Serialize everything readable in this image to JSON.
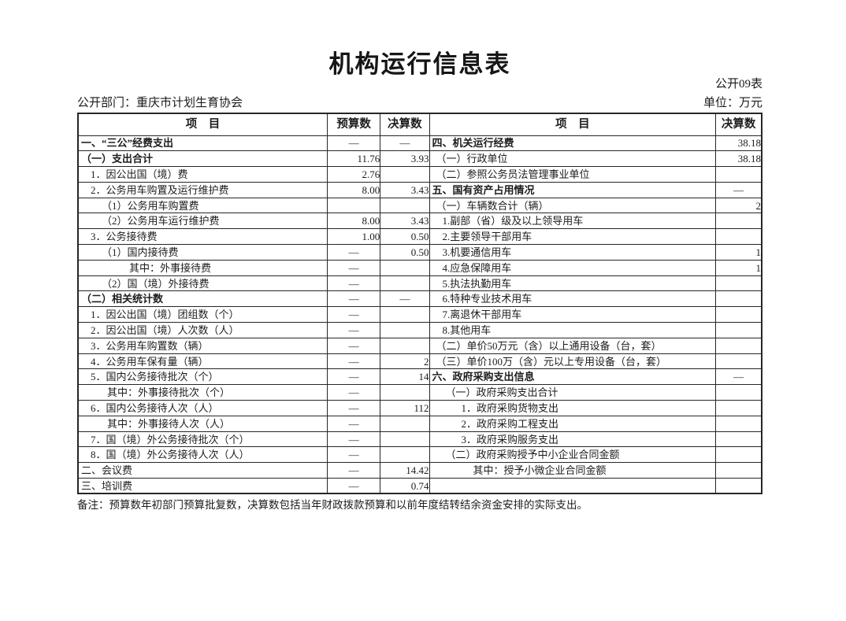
{
  "page": {
    "title": "机构运行信息表",
    "table_code": "公开09表",
    "department": "公开部门：重庆市计划生育协会",
    "unit": "单位：万元",
    "note": "备注：预算数年初部门预算批复数，决算数包括当年财政拨款预算和以前年度结转结余资金安排的实际支出。"
  },
  "table": {
    "headers": {
      "item_left": "项　目",
      "budget": "预算数",
      "final_left": "决算数",
      "item_right": "项　目",
      "final_right": "决算数"
    },
    "rows": [
      {
        "iL": "一、“三公”经费支出",
        "dL": 3,
        "bL": true,
        "v1": "—",
        "v2": "—",
        "iR": "四、机关运行经费",
        "dR": 3,
        "bR": true,
        "v3": "38.18"
      },
      {
        "iL": "（一）支出合计",
        "dL": 3,
        "bL": true,
        "v1": "11.76",
        "v2": "3.93",
        "iR": "（一）行政单位",
        "dR": 8,
        "bR": false,
        "v3": "38.18"
      },
      {
        "iL": "1．因公出国（境）费",
        "dL": 15,
        "bL": false,
        "v1": "2.76",
        "v2": "",
        "iR": "（二）参照公务员法管理事业单位",
        "dR": 8,
        "bR": false,
        "v3": ""
      },
      {
        "iL": "2．公务用车购置及运行维护费",
        "dL": 15,
        "bL": false,
        "v1": "8.00",
        "v2": "3.43",
        "iR": "五、国有资产占用情况",
        "dR": 3,
        "bR": true,
        "v3": "—"
      },
      {
        "iL": "（1）公务用车购置费",
        "dL": 29,
        "bL": false,
        "v1": "",
        "v2": "",
        "iR": "（一）车辆数合计（辆）",
        "dR": 8,
        "bR": false,
        "v3": "2"
      },
      {
        "iL": "（2）公务用车运行维护费",
        "dL": 29,
        "bL": false,
        "v1": "8.00",
        "v2": "3.43",
        "iR": "1.副部（省）级及以上领导用车",
        "dR": 16,
        "bR": false,
        "v3": ""
      },
      {
        "iL": "3．公务接待费",
        "dL": 15,
        "bL": false,
        "v1": "1.00",
        "v2": "0.50",
        "iR": "2.主要领导干部用车",
        "dR": 16,
        "bR": false,
        "v3": ""
      },
      {
        "iL": "（1）国内接待费",
        "dL": 29,
        "bL": false,
        "v1": "—",
        "v2": "0.50",
        "iR": "3.机要通信用车",
        "dR": 16,
        "bR": false,
        "v3": "1"
      },
      {
        "iL": "其中：外事接待费",
        "dL": 64,
        "bL": false,
        "v1": "—",
        "v2": "",
        "iR": "4.应急保障用车",
        "dR": 16,
        "bR": false,
        "v3": "1"
      },
      {
        "iL": "（2）国（境）外接待费",
        "dL": 29,
        "bL": false,
        "v1": "—",
        "v2": "",
        "iR": "5.执法执勤用车",
        "dR": 16,
        "bR": false,
        "v3": ""
      },
      {
        "iL": "（二）相关统计数",
        "dL": 3,
        "bL": true,
        "v1": "—",
        "v2": "—",
        "iR": "6.特种专业技术用车",
        "dR": 16,
        "bR": false,
        "v3": ""
      },
      {
        "iL": "1．因公出国（境）团组数（个）",
        "dL": 15,
        "bL": false,
        "v1": "—",
        "v2": "",
        "iR": "7.离退休干部用车",
        "dR": 16,
        "bR": false,
        "v3": ""
      },
      {
        "iL": "2．因公出国（境）人次数（人）",
        "dL": 15,
        "bL": false,
        "v1": "—",
        "v2": "",
        "iR": "8.其他用车",
        "dR": 16,
        "bR": false,
        "v3": ""
      },
      {
        "iL": "3．公务用车购置数（辆）",
        "dL": 15,
        "bL": false,
        "v1": "—",
        "v2": "",
        "iR": "（二）单价50万元（含）以上通用设备（台，套）",
        "dR": 8,
        "bR": false,
        "v3": ""
      },
      {
        "iL": "4．公务用车保有量（辆）",
        "dL": 15,
        "bL": false,
        "v1": "—",
        "v2": "2",
        "iR": "（三）单价100万（含）元以上专用设备（台，套）",
        "dR": 8,
        "bR": false,
        "v3": ""
      },
      {
        "iL": "5．国内公务接待批次（个）",
        "dL": 15,
        "bL": false,
        "v1": "—",
        "v2": "14",
        "iR": "六、政府采购支出信息",
        "dR": 3,
        "bR": true,
        "v3": "—"
      },
      {
        "iL": "其中：外事接待批次（个）",
        "dL": 36,
        "bL": false,
        "v1": "—",
        "v2": "",
        "iR": "（一）政府采购支出合计",
        "dR": 20,
        "bR": false,
        "v3": ""
      },
      {
        "iL": "6．国内公务接待人次（人）",
        "dL": 15,
        "bL": false,
        "v1": "—",
        "v2": "112",
        "iR": "1．政府采购货物支出",
        "dR": 40,
        "bR": false,
        "v3": ""
      },
      {
        "iL": "其中：外事接待人次（人）",
        "dL": 36,
        "bL": false,
        "v1": "—",
        "v2": "",
        "iR": "2．政府采购工程支出",
        "dR": 40,
        "bR": false,
        "v3": ""
      },
      {
        "iL": "7．国（境）外公务接待批次（个）",
        "dL": 15,
        "bL": false,
        "v1": "—",
        "v2": "",
        "iR": "3．政府采购服务支出",
        "dR": 40,
        "bR": false,
        "v3": ""
      },
      {
        "iL": "8．国（境）外公务接待人次（人）",
        "dL": 15,
        "bL": false,
        "v1": "—",
        "v2": "",
        "iR": "（二）政府采购授予中小企业合同金额",
        "dR": 20,
        "bR": false,
        "v3": ""
      },
      {
        "iL": "二、会议费",
        "dL": 3,
        "bL": false,
        "v1": "—",
        "v2": "14.42",
        "iR": "其中：授予小微企业合同金额",
        "dR": 55,
        "bR": false,
        "v3": ""
      },
      {
        "iL": "三、培训费",
        "dL": 3,
        "bL": false,
        "v1": "—",
        "v2": "0.74",
        "iR": "",
        "dR": 0,
        "bR": false,
        "v3": ""
      }
    ]
  }
}
